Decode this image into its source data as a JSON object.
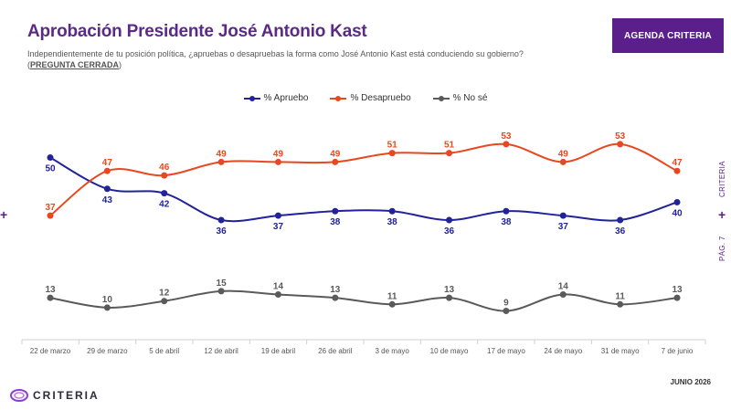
{
  "header": {
    "title": "Aprobación Presidente José Antonio Kast",
    "subtitle_main": "Independientemente de tu posición política, ¿apruebas o desapruebas la forma como José Antonio Kast está conduciendo su gobierno? (",
    "subtitle_closed": "PREGUNTA CERRADA",
    "subtitle_end": ")",
    "badge": "AGENDA CRITERIA"
  },
  "side": {
    "left_plus": "+",
    "right_plus": "+",
    "brand_vertical": "CRITERIA",
    "page_vertical": "PÁG. 7"
  },
  "footer": {
    "date": "JUNIO 2026",
    "logo_text": "CRITERIA"
  },
  "colors": {
    "brand": "#5b1f8c",
    "approve": "#22229a",
    "disapprove": "#e8481f",
    "unsure": "#5a5a5a"
  },
  "chart_data": {
    "type": "line",
    "title": "Aprobación Presidente José Antonio Kast",
    "categories": [
      "22 de marzo",
      "29 de marzo",
      "5 de abril",
      "12 de abril",
      "19 de abril",
      "26 de abril",
      "3 de mayo",
      "10 de mayo",
      "17 de mayo",
      "24 de mayo",
      "31 de mayo",
      "7 de junio"
    ],
    "series": [
      {
        "name": "% Apruebo",
        "color": "#22229a",
        "values": [
          50,
          43,
          42,
          36,
          37,
          38,
          38,
          36,
          38,
          37,
          36,
          40
        ],
        "labels_below": true
      },
      {
        "name": "% Desapruebo",
        "color": "#e8481f",
        "values": [
          37,
          47,
          46,
          49,
          49,
          49,
          51,
          51,
          53,
          49,
          53,
          47
        ],
        "labels_below": false
      },
      {
        "name": "% No sé",
        "color": "#5a5a5a",
        "values": [
          13,
          10,
          12,
          15,
          14,
          13,
          11,
          13,
          9,
          14,
          11,
          13
        ],
        "labels_below": false
      }
    ],
    "legend_position": "top-center",
    "grid": false,
    "xlabel": "",
    "ylabel": ""
  }
}
